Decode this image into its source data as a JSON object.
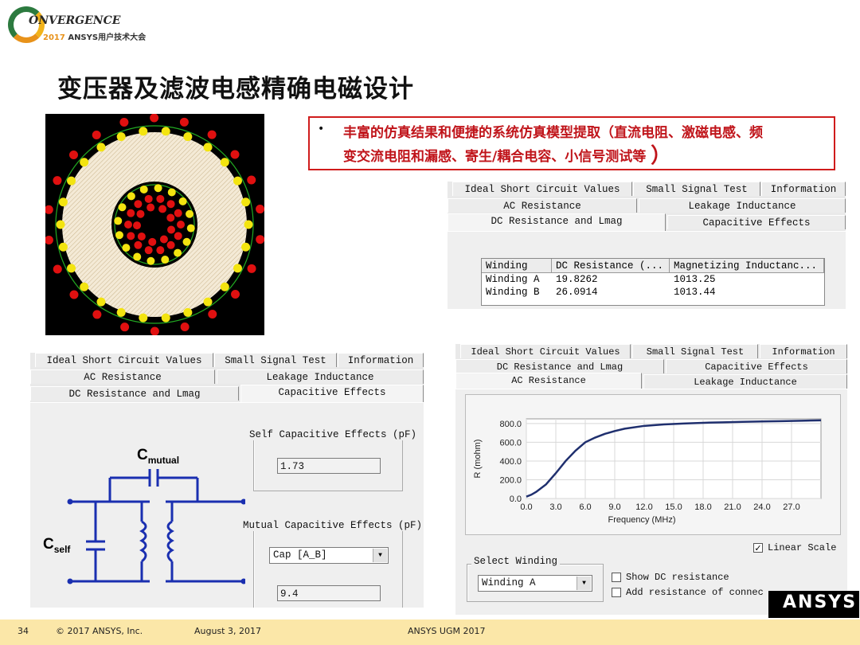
{
  "logo": {
    "word": "ONVERGENCE",
    "year": "2017",
    "subtitle": "ANSYS用户技术大会"
  },
  "slide": {
    "title": "变压器及滤波电感精确电磁设计"
  },
  "bullet": {
    "marker": "•",
    "line1": "丰富的仿真结果和便捷的系统仿真模型提取（直流电阻、激磁电感、频",
    "line2": "变交流电阻和漏感、寄生/耦合电容、小信号测试等",
    "close": "）"
  },
  "dc_panel": {
    "tabs_row1": [
      "Ideal Short Circuit Values",
      "Small Signal Test",
      "Information"
    ],
    "tabs_row2": [
      "AC Resistance",
      "Leakage Inductance"
    ],
    "tabs_row3": [
      "DC Resistance and Lmag",
      "Capacitive Effects"
    ],
    "columns": [
      "Winding",
      "DC Resistance (...",
      "Magnetizing Inductanc..."
    ],
    "rows": [
      [
        "Winding A",
        "19.8262",
        "1013.25"
      ],
      [
        "Winding B",
        "26.0914",
        "1013.44"
      ]
    ]
  },
  "cap_panel": {
    "tabs_row1": [
      "Ideal Short Circuit Values",
      "Small Signal Test",
      "Information"
    ],
    "tabs_row2": [
      "AC Resistance",
      "Leakage Inductance"
    ],
    "tabs_row3": [
      "DC Resistance and Lmag",
      "Capacitive Effects"
    ],
    "self_label": "Self Capacitive Effects (pF)",
    "self_value": "1.73",
    "mutual_label": "Mutual Capacitive Effects (pF)",
    "mutual_select": "Cap [A_B]",
    "mutual_value": "9.4",
    "circuit": {
      "c_mutual": "C",
      "c_mutual_sub": "mutual",
      "c_self": "C",
      "c_self_sub": "self"
    }
  },
  "ac_panel": {
    "tabs_row1": [
      "Ideal Short Circuit Values",
      "Small Signal Test",
      "Information"
    ],
    "tabs_row2": [
      "DC Resistance and Lmag",
      "Capacitive Effects"
    ],
    "tabs_row3": [
      "AC Resistance",
      "Leakage Inductance"
    ],
    "linear_scale": "Linear Scale",
    "select_winding_label": "Select Winding",
    "select_winding_value": "Winding A",
    "show_dc": "Show DC resistance",
    "add_res": "Add resistance of connec"
  },
  "chart_data": {
    "type": "line",
    "xlabel": "Frequency (MHz)",
    "ylabel": "R (mohm)",
    "xlim": [
      0,
      30
    ],
    "ylim": [
      0,
      850
    ],
    "xticks": [
      "0.0",
      "3.0",
      "6.0",
      "9.0",
      "12.0",
      "15.0",
      "18.0",
      "21.0",
      "24.0",
      "27.0"
    ],
    "yticks": [
      "0.0",
      "200.0",
      "400.0",
      "600.0",
      "800.0"
    ],
    "grid": true,
    "series": [
      {
        "x": [
          0,
          0.5,
          1,
          2,
          3,
          4,
          5,
          6,
          7,
          8,
          9,
          10,
          12,
          14,
          16,
          18,
          20,
          22,
          24,
          26,
          28,
          30
        ],
        "y": [
          20,
          40,
          70,
          150,
          270,
          400,
          510,
          600,
          650,
          690,
          720,
          745,
          775,
          790,
          800,
          808,
          813,
          818,
          822,
          826,
          830,
          834
        ],
        "color": "#1f2f6e"
      }
    ]
  },
  "footer": {
    "page": "34",
    "copyright": "© 2017 ANSYS, Inc.",
    "date": "August 3, 2017",
    "event": "ANSYS UGM 2017",
    "brand": "ANSYS"
  }
}
